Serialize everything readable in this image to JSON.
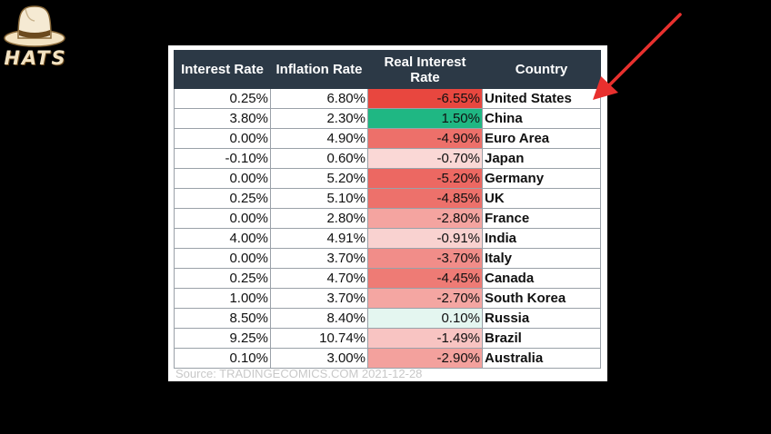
{
  "logo": {
    "text": "HATS"
  },
  "table": {
    "headers": [
      "Interest Rate",
      "Inflation Rate",
      "Real Interest Rate",
      "Country"
    ],
    "rows": [
      {
        "interest": "0.25%",
        "inflation": "6.80%",
        "real": "-6.55%",
        "country": "United States"
      },
      {
        "interest": "3.80%",
        "inflation": "2.30%",
        "real": "1.50%",
        "country": "China"
      },
      {
        "interest": "0.00%",
        "inflation": "4.90%",
        "real": "-4.90%",
        "country": "Euro Area"
      },
      {
        "interest": "-0.10%",
        "inflation": "0.60%",
        "real": "-0.70%",
        "country": "Japan"
      },
      {
        "interest": "0.00%",
        "inflation": "5.20%",
        "real": "-5.20%",
        "country": "Germany"
      },
      {
        "interest": "0.25%",
        "inflation": "5.10%",
        "real": "-4.85%",
        "country": "UK"
      },
      {
        "interest": "0.00%",
        "inflation": "2.80%",
        "real": "-2.80%",
        "country": "France"
      },
      {
        "interest": "4.00%",
        "inflation": "4.91%",
        "real": "-0.91%",
        "country": "India"
      },
      {
        "interest": "0.00%",
        "inflation": "3.70%",
        "real": "-3.70%",
        "country": "Italy"
      },
      {
        "interest": "0.25%",
        "inflation": "4.70%",
        "real": "-4.45%",
        "country": "Canada"
      },
      {
        "interest": "1.00%",
        "inflation": "3.70%",
        "real": "-2.70%",
        "country": "South Korea"
      },
      {
        "interest": "8.50%",
        "inflation": "8.40%",
        "real": "0.10%",
        "country": "Russia"
      },
      {
        "interest": "9.25%",
        "inflation": "10.74%",
        "real": "-1.49%",
        "country": "Brazil"
      },
      {
        "interest": "0.10%",
        "inflation": "3.00%",
        "real": "-2.90%",
        "country": "Australia"
      }
    ],
    "source": "Source: TRADINGECOMICS.COM 2021-12-28"
  },
  "colors": {
    "header_bg": "#2c3946",
    "negative_strong": "#e8473f",
    "positive_strong": "#1fb783",
    "arrow": "#e8302e",
    "logo": "#f3e3c2"
  }
}
